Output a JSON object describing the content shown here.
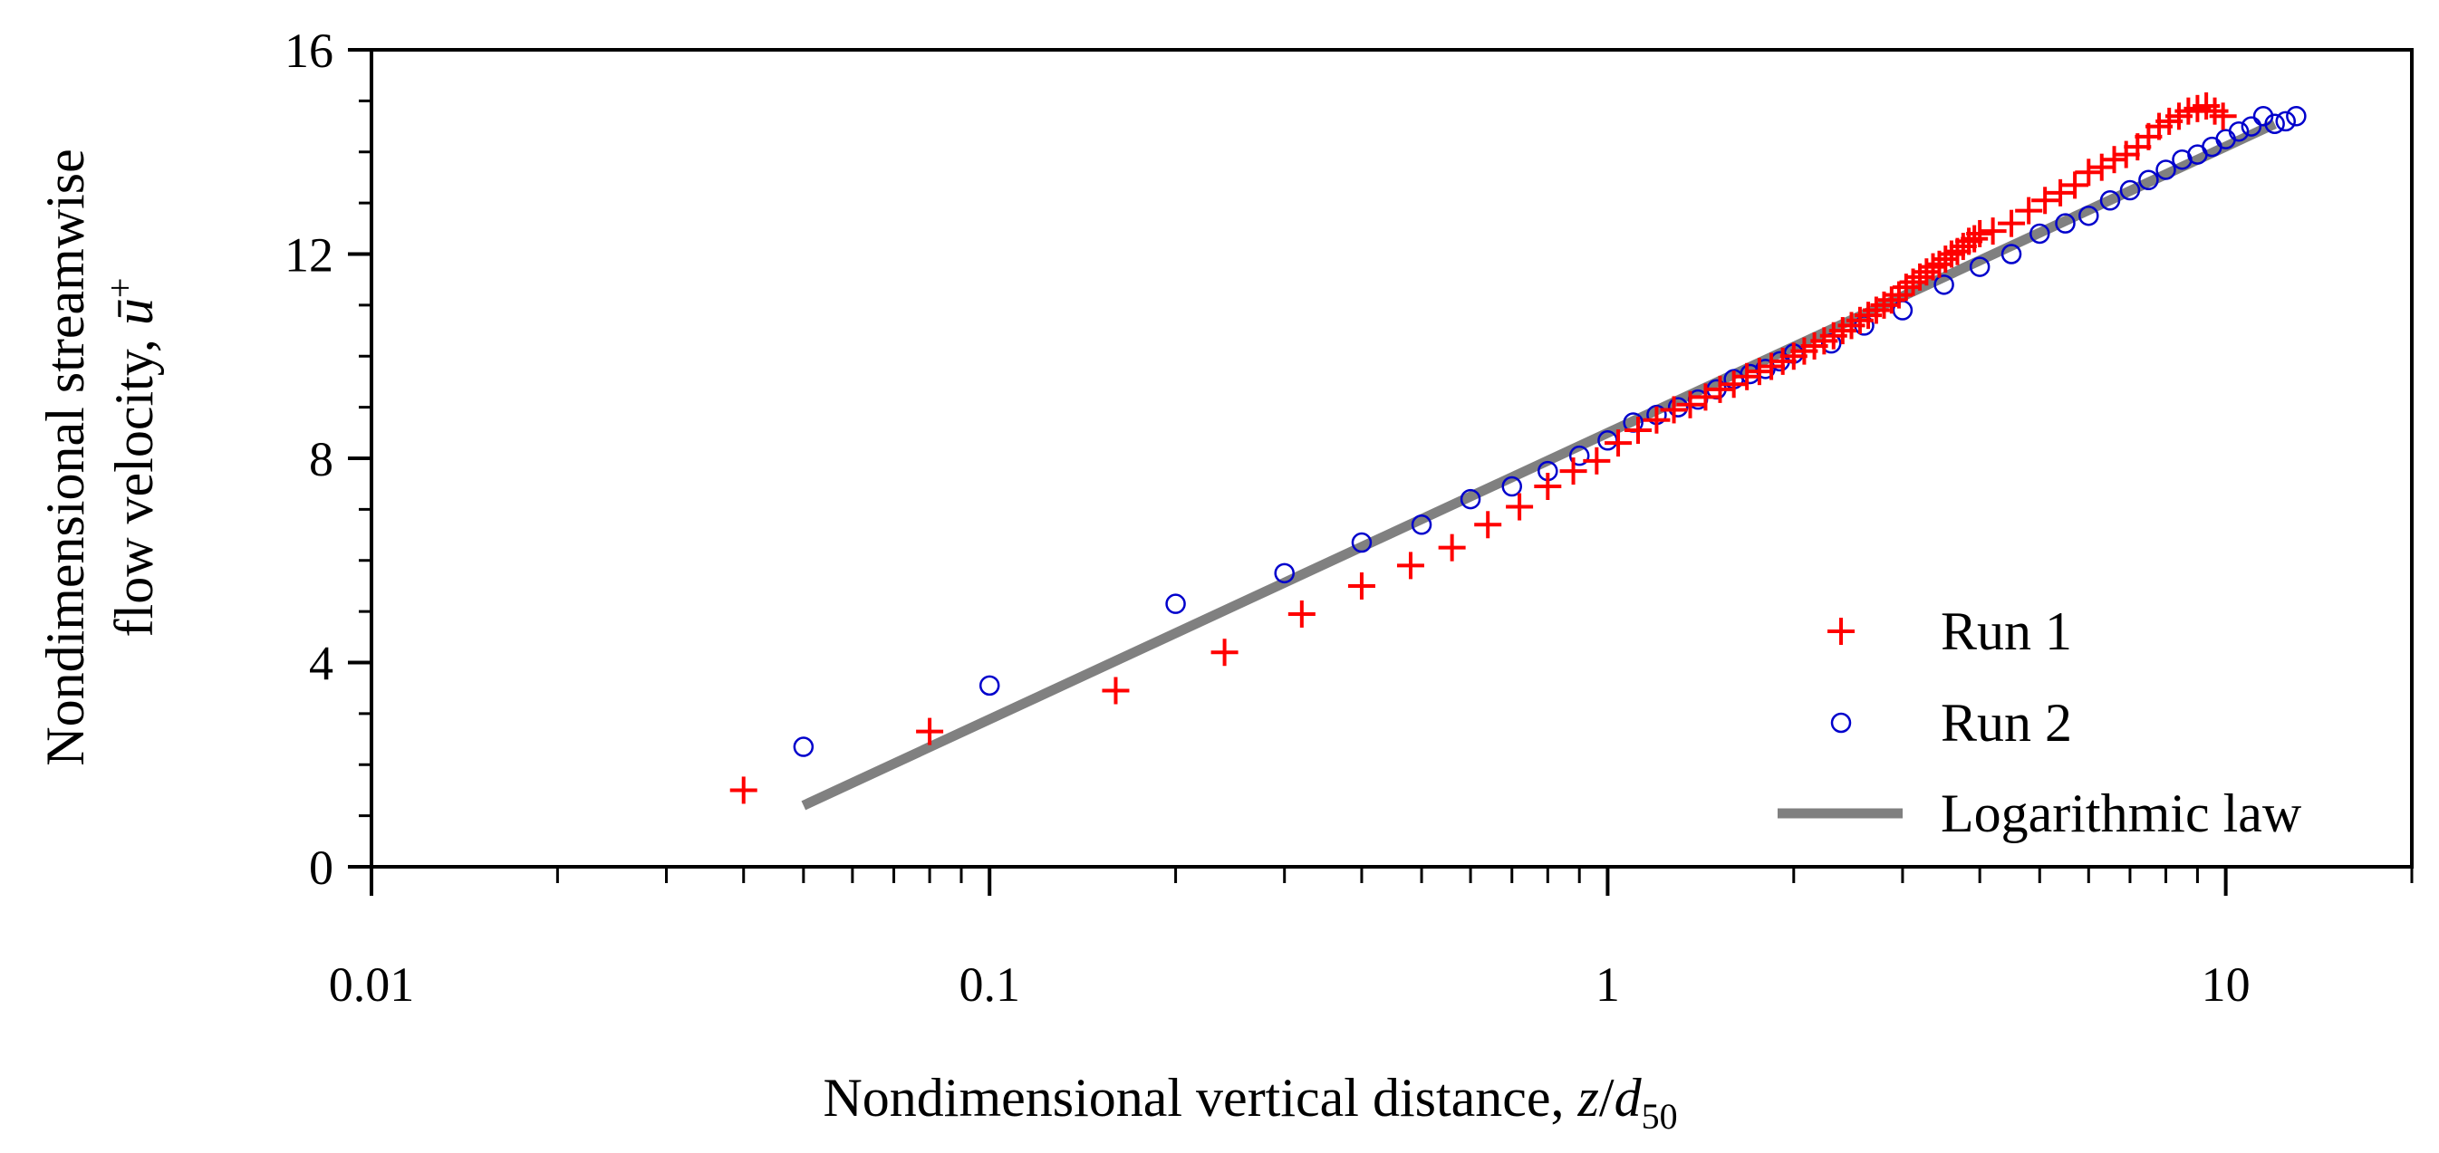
{
  "chart_data": {
    "type": "scatter",
    "xscale": "log",
    "xlim": [
      0.01,
      20
    ],
    "ylim": [
      0,
      16
    ],
    "xticks": [
      0.01,
      0.1,
      1,
      10
    ],
    "xtick_labels": [
      "0.01",
      "0.1",
      "1",
      "10"
    ],
    "yticks": [
      0,
      4,
      8,
      12,
      16
    ],
    "ytick_labels": [
      "0",
      "4",
      "8",
      "12",
      "16"
    ],
    "xlabel": {
      "prefix": "Nondimensional vertical distance, ",
      "var": "z",
      "slash": "/",
      "var2": "d",
      "sub": "50"
    },
    "ylabel": {
      "line1": "Nondimensional streamwise",
      "line2_prefix": "flow velocity, ",
      "var": "ū",
      "sup": "+"
    },
    "legend_position": "bottom-right",
    "series": [
      {
        "name": "Run 1",
        "marker": "plus",
        "color": "#ff0000",
        "x": [
          0.04,
          0.08,
          0.16,
          0.24,
          0.32,
          0.4,
          0.48,
          0.56,
          0.64,
          0.72,
          0.8,
          0.88,
          0.96,
          1.04,
          1.12,
          1.2,
          1.28,
          1.36,
          1.44,
          1.52,
          1.6,
          1.68,
          1.76,
          1.84,
          1.92,
          2.0,
          2.08,
          2.16,
          2.24,
          2.32,
          2.4,
          2.48,
          2.56,
          2.64,
          2.72,
          2.8,
          2.88,
          2.96,
          3.04,
          3.12,
          3.2,
          3.28,
          3.36,
          3.44,
          3.52,
          3.6,
          3.68,
          3.76,
          3.84,
          3.92,
          4.0,
          4.2,
          4.5,
          4.8,
          5.1,
          5.4,
          5.7,
          6.0,
          6.3,
          6.6,
          6.9,
          7.2,
          7.5,
          7.8,
          8.1,
          8.4,
          8.7,
          9.0,
          9.3,
          9.6,
          9.9
        ],
        "y": [
          1.5,
          2.65,
          3.45,
          4.2,
          4.95,
          5.5,
          5.9,
          6.25,
          6.7,
          7.05,
          7.45,
          7.75,
          7.95,
          8.3,
          8.55,
          8.75,
          8.95,
          9.05,
          9.2,
          9.35,
          9.45,
          9.6,
          9.7,
          9.8,
          9.9,
          10.0,
          10.1,
          10.2,
          10.3,
          10.4,
          10.5,
          10.6,
          10.7,
          10.8,
          10.9,
          11.0,
          11.1,
          11.2,
          11.35,
          11.45,
          11.55,
          11.65,
          11.75,
          11.8,
          11.9,
          12.0,
          12.05,
          12.15,
          12.25,
          12.3,
          12.4,
          12.45,
          12.6,
          12.85,
          13.05,
          13.2,
          13.35,
          13.6,
          13.7,
          13.85,
          13.95,
          14.1,
          14.3,
          14.5,
          14.6,
          14.7,
          14.8,
          14.85,
          14.9,
          14.8,
          14.7
        ]
      },
      {
        "name": "Run 2",
        "marker": "circle",
        "color": "#0000cc",
        "x": [
          0.05,
          0.1,
          0.2,
          0.3,
          0.4,
          0.5,
          0.6,
          0.7,
          0.8,
          0.9,
          1.0,
          1.1,
          1.2,
          1.3,
          1.4,
          1.5,
          1.6,
          1.7,
          1.8,
          1.9,
          2.0,
          2.3,
          2.6,
          3.0,
          3.5,
          4.0,
          4.5,
          5.0,
          5.5,
          6.0,
          6.5,
          7.0,
          7.5,
          8.0,
          8.5,
          9.0,
          9.5,
          10.0,
          10.5,
          11.0,
          11.5,
          12.0,
          12.5,
          13.0
        ],
        "y": [
          2.35,
          3.55,
          5.15,
          5.75,
          6.35,
          6.7,
          7.2,
          7.45,
          7.75,
          8.05,
          8.35,
          8.7,
          8.85,
          9.0,
          9.15,
          9.35,
          9.55,
          9.65,
          9.75,
          9.9,
          10.05,
          10.25,
          10.6,
          10.9,
          11.4,
          11.75,
          12.0,
          12.4,
          12.6,
          12.75,
          13.05,
          13.25,
          13.45,
          13.65,
          13.85,
          13.95,
          14.1,
          14.25,
          14.4,
          14.5,
          14.7,
          14.55,
          14.6,
          14.7
        ]
      },
      {
        "name": "Logarithmic law",
        "marker": "line",
        "color": "#808080",
        "x": [
          0.05,
          12.0
        ],
        "y": [
          1.2,
          14.55
        ]
      }
    ]
  }
}
